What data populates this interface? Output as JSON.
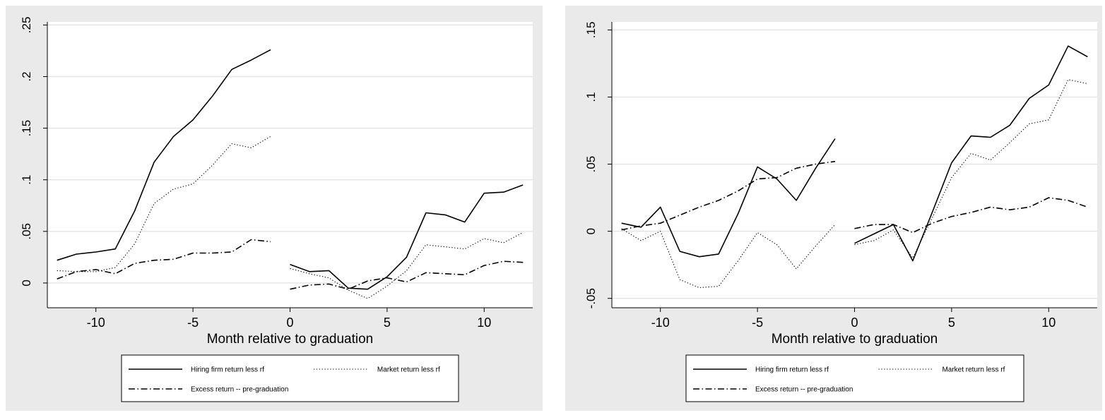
{
  "chart_data": [
    {
      "type": "line",
      "title": "",
      "xlabel": "Month relative to graduation",
      "ylabel": "",
      "xlim": [
        -12.5,
        12.5
      ],
      "ylim": [
        -0.024,
        0.253
      ],
      "xticks": [
        -10,
        -5,
        0,
        5,
        10
      ],
      "xtick_labels": [
        "-10",
        "-5",
        "0",
        "5",
        "10"
      ],
      "yticks": [
        0,
        0.05,
        0.1,
        0.15,
        0.2,
        0.25
      ],
      "ytick_labels": [
        "0",
        ".05",
        ".1",
        ".15",
        ".2",
        ".25"
      ],
      "grid": true,
      "legend_position": "bottom",
      "series": [
        {
          "name": "Hiring firm return less rf",
          "style": "solid",
          "segments": [
            {
              "x": [
                -12,
                -11,
                -10,
                -9,
                -8,
                -7,
                -6,
                -5,
                -4,
                -3,
                -2,
                -1
              ],
              "y": [
                0.022,
                0.028,
                0.03,
                0.033,
                0.07,
                0.117,
                0.142,
                0.158,
                0.181,
                0.207,
                0.216,
                0.226
              ]
            },
            {
              "x": [
                0,
                1,
                2,
                3,
                4,
                5,
                6,
                7,
                8,
                9,
                10,
                11,
                12
              ],
              "y": [
                0.018,
                0.011,
                0.012,
                -0.005,
                -0.006,
                0.006,
                0.025,
                0.068,
                0.066,
                0.059,
                0.087,
                0.088,
                0.095
              ]
            }
          ]
        },
        {
          "name": "Market return less rf",
          "style": "dotted",
          "segments": [
            {
              "x": [
                -12,
                -11,
                -10,
                -9,
                -8,
                -7,
                -6,
                -5,
                -4,
                -3,
                -2,
                -1
              ],
              "y": [
                0.012,
                0.011,
                0.011,
                0.015,
                0.038,
                0.077,
                0.091,
                0.096,
                0.114,
                0.135,
                0.131,
                0.142
              ]
            },
            {
              "x": [
                0,
                1,
                2,
                3,
                4,
                5,
                6,
                7,
                8,
                9,
                10,
                11,
                12
              ],
              "y": [
                0.014,
                0.009,
                0.005,
                -0.007,
                -0.015,
                -0.003,
                0.012,
                0.037,
                0.035,
                0.033,
                0.043,
                0.039,
                0.049
              ]
            }
          ]
        },
        {
          "name": "Excess return -- pre-graduation",
          "style": "dashdot",
          "segments": [
            {
              "x": [
                -12,
                -11,
                -10,
                -9,
                -8,
                -7,
                -6,
                -5,
                -4,
                -3,
                -2,
                -1
              ],
              "y": [
                0.004,
                0.011,
                0.013,
                0.009,
                0.019,
                0.022,
                0.023,
                0.029,
                0.029,
                0.03,
                0.042,
                0.04
              ]
            },
            {
              "x": [
                0,
                1,
                2,
                3,
                4,
                5,
                6,
                7,
                8,
                9,
                10,
                11,
                12
              ],
              "y": [
                -0.006,
                -0.002,
                -0.001,
                -0.006,
                0.002,
                0.005,
                0.001,
                0.01,
                0.009,
                0.008,
                0.017,
                0.021,
                0.02
              ]
            }
          ]
        }
      ]
    },
    {
      "type": "line",
      "title": "",
      "xlabel": "Month relative to graduation",
      "ylabel": "",
      "xlim": [
        -12.5,
        12.5
      ],
      "ylim": [
        -0.057,
        0.156
      ],
      "xticks": [
        -10,
        -5,
        0,
        5,
        10
      ],
      "xtick_labels": [
        "-10",
        "-5",
        "0",
        "5",
        "10"
      ],
      "yticks": [
        -0.05,
        0,
        0.05,
        0.1,
        0.15
      ],
      "ytick_labels": [
        "-.05",
        "0",
        ".05",
        ".1",
        ".15"
      ],
      "grid": true,
      "legend_position": "bottom",
      "series": [
        {
          "name": "Hiring firm return less rf",
          "style": "solid",
          "segments": [
            {
              "x": [
                -12,
                -11,
                -10,
                -9,
                -8,
                -7,
                -6,
                -5,
                -4,
                -3,
                -2,
                -1
              ],
              "y": [
                0.006,
                0.003,
                0.018,
                -0.015,
                -0.019,
                -0.017,
                0.013,
                0.048,
                0.039,
                0.023,
                0.047,
                0.069
              ]
            },
            {
              "x": [
                0,
                1,
                2,
                3,
                4,
                5,
                6,
                7,
                8,
                9,
                10,
                11,
                12
              ],
              "y": [
                -0.009,
                -0.002,
                0.005,
                -0.022,
                0.014,
                0.051,
                0.071,
                0.07,
                0.079,
                0.099,
                0.109,
                0.138,
                0.13
              ]
            }
          ]
        },
        {
          "name": "Market return less rf",
          "style": "dotted",
          "segments": [
            {
              "x": [
                -12,
                -11,
                -10,
                -9,
                -8,
                -7,
                -6,
                -5,
                -4,
                -3,
                -2,
                -1
              ],
              "y": [
                0.002,
                -0.007,
                0.0,
                -0.036,
                -0.042,
                -0.041,
                -0.022,
                -0.001,
                -0.01,
                -0.028,
                -0.011,
                0.005
              ]
            },
            {
              "x": [
                0,
                1,
                2,
                3,
                4,
                5,
                6,
                7,
                8,
                9,
                10,
                11,
                12
              ],
              "y": [
                -0.01,
                -0.007,
                0.001,
                -0.02,
                0.01,
                0.04,
                0.058,
                0.053,
                0.066,
                0.08,
                0.083,
                0.113,
                0.11
              ]
            }
          ]
        },
        {
          "name": "Excess return -- pre-graduation",
          "style": "dashdot",
          "segments": [
            {
              "x": [
                -12,
                -11,
                -10,
                -9,
                -8,
                -7,
                -6,
                -5,
                -4,
                -3,
                -2,
                -1
              ],
              "y": [
                0.001,
                0.004,
                0.006,
                0.012,
                0.018,
                0.023,
                0.03,
                0.039,
                0.04,
                0.047,
                0.05,
                0.052
              ]
            },
            {
              "x": [
                0,
                1,
                2,
                3,
                4,
                5,
                6,
                7,
                8,
                9,
                10,
                11,
                12
              ],
              "y": [
                0.002,
                0.005,
                0.005,
                -0.001,
                0.006,
                0.011,
                0.014,
                0.018,
                0.016,
                0.018,
                0.025,
                0.023,
                0.018
              ]
            }
          ]
        }
      ]
    }
  ]
}
